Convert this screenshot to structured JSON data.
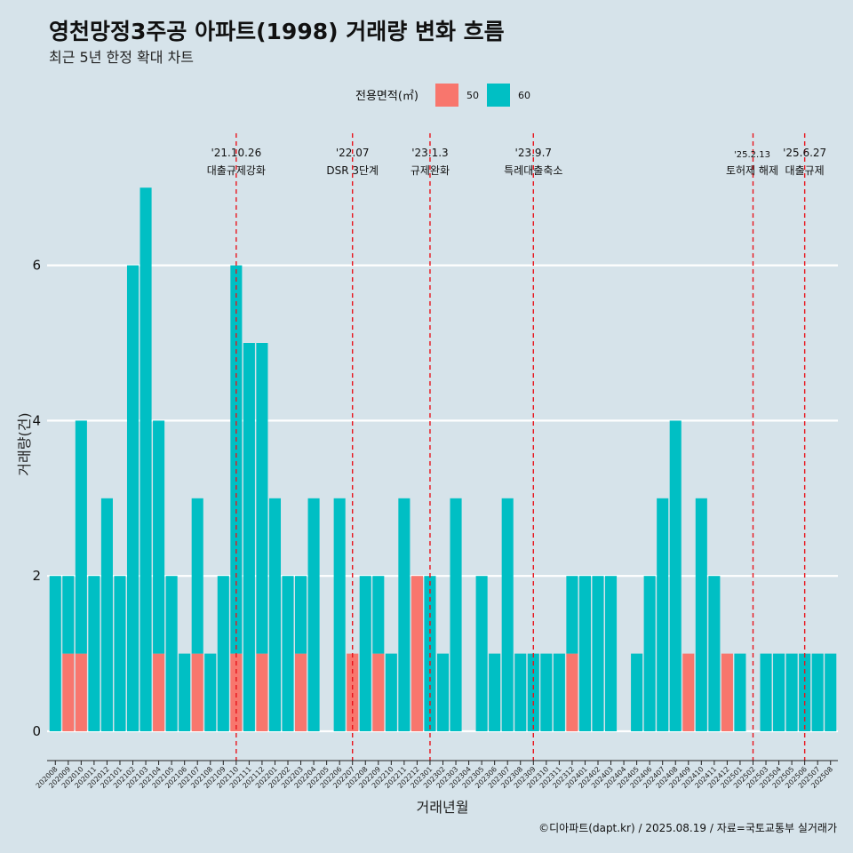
{
  "chart_data": {
    "type": "bar",
    "stacked": true,
    "title": "영천망정3주공 아파트(1998) 거래량 변화 흐름",
    "subtitle": "최근 5년 한정 확대 차트",
    "xlabel": "거래년월",
    "ylabel": "거래량(건)",
    "ylim": [
      0,
      7
    ],
    "yticks": [
      0,
      2,
      4,
      6
    ],
    "grid": true,
    "legend": {
      "title": "전용면적(㎡)",
      "position": "top"
    },
    "categories": [
      "202008",
      "202009",
      "202010",
      "202011",
      "202012",
      "202101",
      "202102",
      "202103",
      "202104",
      "202105",
      "202106",
      "202107",
      "202108",
      "202109",
      "202110",
      "202111",
      "202112",
      "202201",
      "202202",
      "202203",
      "202204",
      "202205",
      "202206",
      "202207",
      "202208",
      "202209",
      "202210",
      "202211",
      "202212",
      "202301",
      "202302",
      "202303",
      "202304",
      "202305",
      "202306",
      "202307",
      "202308",
      "202309",
      "202310",
      "202311",
      "202312",
      "202401",
      "202402",
      "202403",
      "202404",
      "202405",
      "202406",
      "202407",
      "202408",
      "202409",
      "202410",
      "202411",
      "202412",
      "202501",
      "202502",
      "202503",
      "202504",
      "202505",
      "202506",
      "202507",
      "202508"
    ],
    "series": [
      {
        "name": "50",
        "color": "#f8766d",
        "values": [
          0,
          1,
          1,
          0,
          0,
          0,
          0,
          0,
          1,
          0,
          0,
          1,
          0,
          0,
          1,
          0,
          1,
          0,
          0,
          1,
          0,
          0,
          0,
          1,
          0,
          1,
          0,
          0,
          2,
          0,
          0,
          0,
          0,
          0,
          0,
          0,
          0,
          0,
          0,
          0,
          1,
          0,
          0,
          0,
          0,
          0,
          0,
          0,
          0,
          1,
          0,
          0,
          1,
          0,
          0,
          0,
          0,
          0,
          0,
          0,
          0
        ]
      },
      {
        "name": "60",
        "color": "#00bfc4",
        "values": [
          2,
          1,
          3,
          2,
          3,
          2,
          6,
          7,
          3,
          2,
          1,
          2,
          1,
          2,
          5,
          5,
          4,
          3,
          2,
          1,
          3,
          0,
          3,
          0,
          2,
          1,
          1,
          3,
          0,
          2,
          1,
          3,
          0,
          2,
          1,
          3,
          1,
          1,
          1,
          1,
          1,
          2,
          2,
          2,
          0,
          1,
          2,
          3,
          4,
          0,
          3,
          2,
          0,
          1,
          0,
          1,
          1,
          1,
          1,
          1,
          1
        ]
      }
    ],
    "events": [
      {
        "date": "'21.10.26",
        "label": "대출규제강화",
        "after": "202110"
      },
      {
        "date": "'22.07",
        "label": "DSR 3단계",
        "after": "202207"
      },
      {
        "date": "'23.1.3",
        "label": "규제완화",
        "after": "202301"
      },
      {
        "date": "'23.9.7",
        "label": "특례대출축소",
        "after": "202309"
      },
      {
        "date": "'25.2.13",
        "label": "토허제 해제",
        "after": "202502"
      },
      {
        "date": "'25.6.27",
        "label": "대출규제",
        "after": "202506"
      }
    ],
    "event_line_color": "#e8141c",
    "caption": "©디아파트(dapt.kr) / 2025.08.19 / 자료=국토교통부 실거래가"
  }
}
